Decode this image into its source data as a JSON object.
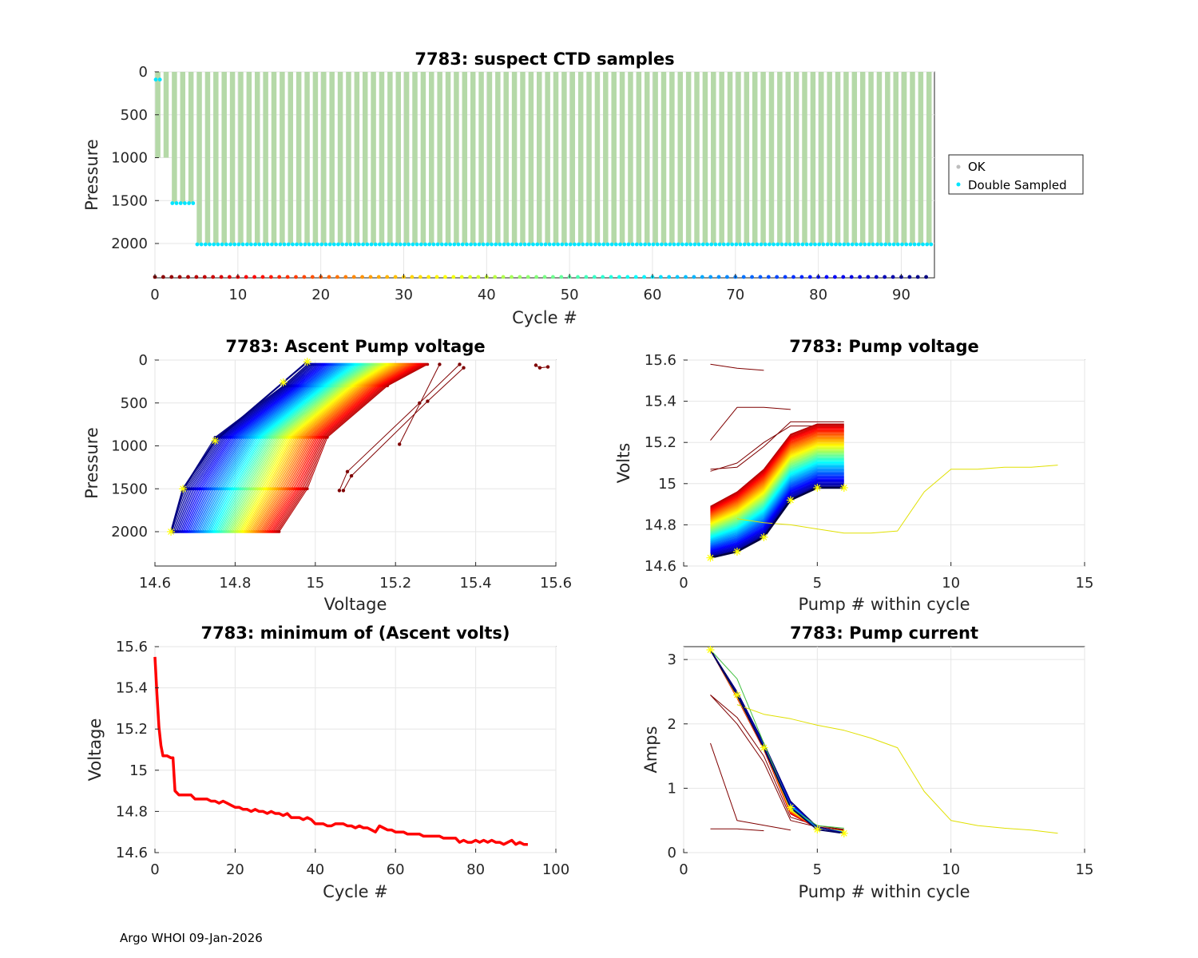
{
  "footer": "Argo WHOI 09-Jan-2026",
  "chart_data": [
    {
      "id": "suspect",
      "type": "scatter",
      "title": "7783: suspect CTD samples",
      "xlabel": "Cycle #",
      "ylabel": "Pressure",
      "xlim": [
        0,
        94
      ],
      "ylim": [
        2400,
        0
      ],
      "xticks": [
        0,
        10,
        20,
        30,
        40,
        50,
        60,
        70,
        80,
        90
      ],
      "yticks": [
        0,
        500,
        1000,
        1500,
        2000
      ],
      "grid": true,
      "legend": {
        "position": "right",
        "entries": [
          {
            "label": "OK",
            "color": "#bdbdbd"
          },
          {
            "label": "Double Sampled",
            "color": "#00e5ff"
          }
        ]
      },
      "ok_profile_color": "#b5d9a8",
      "cycles": {
        "start": 0,
        "end": 93
      },
      "profile_bottoms": [
        {
          "from": 0,
          "to": 1,
          "pressure": 1000
        },
        {
          "from": 2,
          "to": 4,
          "pressure": 1530
        },
        {
          "from": 5,
          "to": 93,
          "pressure": 2010
        }
      ],
      "double_sampled": [
        {
          "cycle": 0,
          "pressure": 90
        },
        {
          "from": 2,
          "to": 4,
          "pressure": 1530
        },
        {
          "from": 5,
          "to": 93,
          "pressure": 2010
        }
      ],
      "cycle_marker_pressure": 2390
    },
    {
      "id": "ascent",
      "type": "line",
      "title": "7783: Ascent Pump voltage",
      "xlabel": "Voltage",
      "ylabel": "Pressure",
      "xlim": [
        14.6,
        15.6
      ],
      "ylim": [
        2400,
        0
      ],
      "xticks": [
        14.6,
        14.8,
        15,
        15.2,
        15.4,
        15.6
      ],
      "yticks": [
        0,
        500,
        1000,
        1500,
        2000
      ],
      "grid": true,
      "profile_pressures": [
        2000,
        1500,
        900,
        300,
        50
      ],
      "first_profiles": [
        {
          "color": "#7f0000",
          "points": [
            [
              15.21,
              980
            ],
            [
              15.31,
              50
            ]
          ]
        },
        {
          "color": "#7f0000",
          "points": [
            [
              15.06,
              1520
            ],
            [
              15.08,
              1300
            ],
            [
              15.26,
              500
            ],
            [
              15.36,
              50
            ]
          ]
        },
        {
          "color": "#7f0000",
          "points": [
            [
              15.07,
              1520
            ],
            [
              15.09,
              1350
            ],
            [
              15.28,
              480
            ],
            [
              15.37,
              90
            ]
          ]
        },
        {
          "color": "#7f0000",
          "points": [
            [
              15.55,
              60
            ],
            [
              15.56,
              90
            ],
            [
              15.58,
              80
            ]
          ]
        }
      ],
      "envelope": {
        "start": [
          14.91,
          14.98,
          15.03,
          15.18,
          15.28
        ],
        "end": [
          14.64,
          14.67,
          14.75,
          14.92,
          14.98
        ]
      },
      "star_points": [
        [
          14.64,
          2000
        ],
        [
          14.67,
          1500
        ],
        [
          14.75,
          940
        ],
        [
          14.92,
          260
        ],
        [
          14.98,
          20
        ]
      ],
      "star_color": "#ffff00"
    },
    {
      "id": "pumpv",
      "type": "line",
      "title": "7783: Pump voltage",
      "xlabel": "Pump # within cycle",
      "ylabel": "Volts",
      "xlim": [
        0,
        15
      ],
      "ylim": [
        14.6,
        15.6
      ],
      "xticks": [
        0,
        5,
        10,
        15
      ],
      "yticks": [
        14.6,
        14.8,
        15,
        15.2,
        15.4,
        15.6
      ],
      "grid": true,
      "first_profiles": [
        {
          "color": "#7f0000",
          "points": [
            [
              1,
              15.58
            ],
            [
              2,
              15.56
            ],
            [
              3,
              15.55
            ]
          ]
        },
        {
          "color": "#7f0000",
          "points": [
            [
              1,
              15.21
            ],
            [
              2,
              15.37
            ],
            [
              3,
              15.37
            ],
            [
              4,
              15.36
            ]
          ]
        },
        {
          "color": "#7f0000",
          "points": [
            [
              1,
              15.07
            ],
            [
              2,
              15.08
            ],
            [
              3,
              15.18
            ],
            [
              4,
              15.3
            ],
            [
              6,
              15.3
            ]
          ]
        },
        {
          "color": "#7f0000",
          "points": [
            [
              1,
              15.06
            ],
            [
              2,
              15.1
            ],
            [
              3,
              15.2
            ],
            [
              4,
              15.28
            ],
            [
              6,
              15.28
            ]
          ]
        }
      ],
      "envelope": {
        "start": [
          14.89,
          14.96,
          15.07,
          15.24,
          15.29,
          15.29
        ],
        "end": [
          14.64,
          14.67,
          14.74,
          14.92,
          14.98,
          14.98
        ]
      },
      "anomalous_profile": {
        "color": "#e0e000",
        "points": [
          [
            2,
            14.83
          ],
          [
            3,
            14.81
          ],
          [
            4,
            14.8
          ],
          [
            5,
            14.78
          ],
          [
            6,
            14.76
          ],
          [
            7,
            14.76
          ],
          [
            8,
            14.77
          ],
          [
            9,
            14.96
          ],
          [
            10,
            15.07
          ],
          [
            11,
            15.07
          ],
          [
            12,
            15.08
          ],
          [
            13,
            15.08
          ],
          [
            14,
            15.09
          ]
        ]
      },
      "star_points": [
        [
          1,
          14.64
        ],
        [
          2,
          14.67
        ],
        [
          3,
          14.74
        ],
        [
          4,
          14.92
        ],
        [
          5,
          14.98
        ],
        [
          6,
          14.98
        ]
      ],
      "star_color": "#ffff00"
    },
    {
      "id": "minv",
      "type": "line",
      "title": "7783: minimum of (Ascent volts)",
      "xlabel": "Cycle #",
      "ylabel": "Voltage",
      "xlim": [
        0,
        100
      ],
      "ylim": [
        14.6,
        15.6
      ],
      "xticks": [
        0,
        20,
        40,
        60,
        80,
        100
      ],
      "yticks": [
        14.6,
        14.8,
        15,
        15.2,
        15.4,
        15.6
      ],
      "grid": true,
      "color": "#ff0000",
      "x": [
        0,
        0.5,
        1,
        1.5,
        2,
        3,
        4,
        4.5,
        5,
        6,
        7,
        8,
        9,
        10,
        11,
        12,
        13,
        14,
        15,
        16,
        17,
        18,
        19,
        20,
        21,
        22,
        23,
        24,
        25,
        26,
        27,
        28,
        29,
        30,
        31,
        32,
        33,
        34,
        35,
        36,
        37,
        38,
        39,
        40,
        41,
        42,
        43,
        44,
        45,
        46,
        47,
        48,
        49,
        50,
        51,
        52,
        53,
        54,
        55,
        56,
        57,
        58,
        59,
        60,
        61,
        62,
        63,
        64,
        65,
        66,
        67,
        68,
        69,
        70,
        71,
        72,
        73,
        74,
        75,
        76,
        77,
        78,
        79,
        80,
        81,
        82,
        83,
        84,
        85,
        86,
        87,
        88,
        89,
        90,
        91,
        92,
        93
      ],
      "y": [
        15.55,
        15.37,
        15.21,
        15.12,
        15.07,
        15.07,
        15.06,
        15.06,
        14.9,
        14.88,
        14.88,
        14.88,
        14.88,
        14.86,
        14.86,
        14.86,
        14.86,
        14.85,
        14.85,
        14.84,
        14.85,
        14.84,
        14.83,
        14.82,
        14.82,
        14.81,
        14.81,
        14.8,
        14.81,
        14.8,
        14.8,
        14.79,
        14.8,
        14.79,
        14.79,
        14.78,
        14.79,
        14.77,
        14.77,
        14.77,
        14.76,
        14.77,
        14.76,
        14.74,
        14.74,
        14.74,
        14.73,
        14.73,
        14.74,
        14.74,
        14.74,
        14.73,
        14.73,
        14.72,
        14.73,
        14.72,
        14.72,
        14.71,
        14.7,
        14.73,
        14.72,
        14.71,
        14.71,
        14.7,
        14.7,
        14.7,
        14.69,
        14.69,
        14.69,
        14.69,
        14.68,
        14.68,
        14.68,
        14.68,
        14.68,
        14.67,
        14.67,
        14.67,
        14.67,
        14.65,
        14.66,
        14.65,
        14.65,
        14.66,
        14.65,
        14.66,
        14.65,
        14.66,
        14.65,
        14.65,
        14.64,
        14.65,
        14.66,
        14.64,
        14.65,
        14.64,
        14.64
      ]
    },
    {
      "id": "pumpi",
      "type": "line",
      "title": "7783: Pump current",
      "xlabel": "Pump # within cycle",
      "ylabel": "Amps",
      "xlim": [
        0,
        15
      ],
      "ylim": [
        0,
        3.2
      ],
      "xticks": [
        0,
        5,
        10,
        15
      ],
      "yticks": [
        0,
        1,
        2,
        3
      ],
      "grid": true,
      "first_profiles": [
        {
          "color": "#7f0000",
          "points": [
            [
              1,
              1.7
            ],
            [
              2,
              0.5
            ],
            [
              4,
              0.35
            ]
          ]
        },
        {
          "color": "#7f0000",
          "points": [
            [
              1,
              0.37
            ],
            [
              2,
              0.37
            ],
            [
              3,
              0.34
            ]
          ]
        },
        {
          "color": "#7f0000",
          "points": [
            [
              1,
              2.45
            ],
            [
              2,
              2.0
            ],
            [
              3,
              1.4
            ],
            [
              4,
              0.5
            ],
            [
              5,
              0.4
            ],
            [
              6,
              0.35
            ]
          ]
        },
        {
          "color": "#7f0000",
          "points": [
            [
              1,
              2.45
            ],
            [
              2,
              2.1
            ],
            [
              3,
              1.5
            ],
            [
              4,
              0.55
            ],
            [
              5,
              0.42
            ],
            [
              6,
              0.36
            ]
          ]
        }
      ],
      "envelope": {
        "start": [
          3.15,
          2.4,
          1.6,
          0.6,
          0.38,
          0.34
        ],
        "end": [
          3.15,
          2.5,
          1.7,
          0.8,
          0.4,
          0.3
        ]
      },
      "outlier_profile": {
        "color": "#40c040",
        "points": [
          [
            1,
            3.15
          ],
          [
            2,
            2.7
          ],
          [
            3,
            1.7
          ],
          [
            4,
            0.7
          ],
          [
            5,
            0.42
          ],
          [
            6,
            0.38
          ]
        ]
      },
      "anomalous_profile": {
        "color": "#e0e000",
        "points": [
          [
            2,
            2.3
          ],
          [
            3,
            2.15
          ],
          [
            4,
            2.08
          ],
          [
            5,
            1.98
          ],
          [
            6,
            1.9
          ],
          [
            7,
            1.78
          ],
          [
            8,
            1.63
          ],
          [
            9,
            0.95
          ],
          [
            10,
            0.5
          ],
          [
            11,
            0.42
          ],
          [
            12,
            0.38
          ],
          [
            13,
            0.35
          ],
          [
            14,
            0.3
          ]
        ]
      },
      "star_points": [
        [
          1,
          3.15
        ],
        [
          2,
          2.45
        ],
        [
          3,
          1.63
        ],
        [
          4,
          0.7
        ],
        [
          5,
          0.36
        ],
        [
          6,
          0.3
        ]
      ],
      "star_color": "#ffff00"
    }
  ]
}
